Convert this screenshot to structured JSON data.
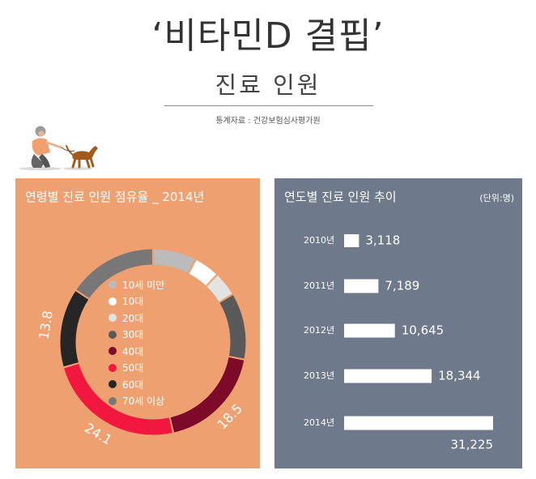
{
  "header": {
    "title": "‘비타민D 결핍’",
    "subtitle": "진료 인원",
    "source": "통계자료 : 건강보험심사평가원"
  },
  "colors": {
    "left_panel_bg": "#EFA071",
    "right_panel_bg": "#6E798C",
    "bar_color": "#FFFFFF"
  },
  "illustration": {
    "icon": "person-walking-dog-icon"
  },
  "chart_data": [
    {
      "type": "pie",
      "variant": "donut",
      "title": "연령별 진료 인원 점유율 _ 2014년",
      "legend_position": "center",
      "series": [
        {
          "name": "10세 미만",
          "value": 7.6,
          "color": "#BBBBBB"
        },
        {
          "name": "10대",
          "value": 4.5,
          "color": "#FFFFFF"
        },
        {
          "name": "20대",
          "value": 4.3,
          "color": "#E3E3E3"
        },
        {
          "name": "30대",
          "value": 11.6,
          "color": "#595959"
        },
        {
          "name": "40대",
          "value": 18.5,
          "color": "#7E0A2A"
        },
        {
          "name": "50대",
          "value": 24.1,
          "color": "#F2173E"
        },
        {
          "name": "60대",
          "value": 13.8,
          "color": "#262626"
        },
        {
          "name": "70세 이상",
          "value": 15.6,
          "color": "#777777"
        }
      ],
      "data_labels": [
        "13.8",
        "24.1",
        "18.5"
      ]
    },
    {
      "type": "bar",
      "orientation": "horizontal",
      "title": "연도별 진료 인원 추이",
      "unit": "(단위:명)",
      "categories": [
        "2010년",
        "2011년",
        "2012년",
        "2013년",
        "2014년"
      ],
      "values": [
        3118,
        7189,
        10645,
        18344,
        31225
      ],
      "value_labels": [
        "3,118",
        "7,189",
        "10,645",
        "18,344",
        "31,225"
      ]
    }
  ]
}
